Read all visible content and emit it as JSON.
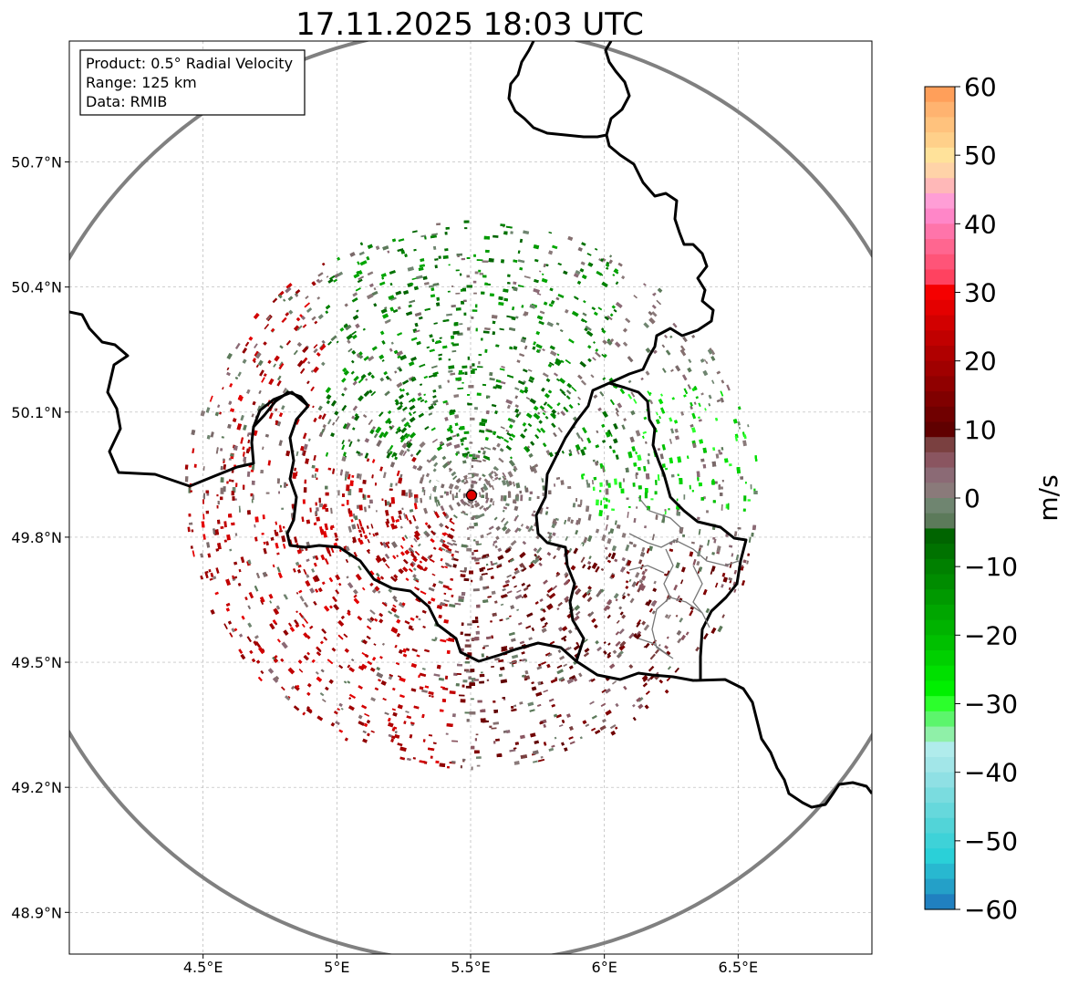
{
  "title": "17.11.2025 18:03 UTC",
  "info_box": {
    "line1": "Product: 0.5° Radial Velocity",
    "line2": "Range: 125 km",
    "line3": "Data: RMIB"
  },
  "x_ticks": [
    "4.5°E",
    "5°E",
    "5.5°E",
    "6°E",
    "6.5°E"
  ],
  "y_ticks": [
    "50.7°N",
    "50.4°N",
    "50.1°N",
    "49.8°N",
    "49.5°N",
    "49.2°N",
    "48.9°N"
  ],
  "colorbar": {
    "label": "m/s",
    "ticks": [
      "60",
      "50",
      "40",
      "30",
      "20",
      "10",
      "0",
      "−10",
      "−20",
      "−30",
      "−40",
      "−50",
      "−60"
    ],
    "colors": [
      "#ff9f5a",
      "#ffb370",
      "#ffc27d",
      "#ffd08a",
      "#ffe29a",
      "#ffd3a8",
      "#ffb8b8",
      "#ff9ed6",
      "#ff86c8",
      "#ff74aa",
      "#ff6690",
      "#ff5478",
      "#ff4260",
      "#f50000",
      "#e40000",
      "#d20000",
      "#c10000",
      "#b00000",
      "#a00000",
      "#900000",
      "#800000",
      "#700000",
      "#600000",
      "#7a4040",
      "#8a5560",
      "#8b6a75",
      "#8a7a7a",
      "#6f8570",
      "#5c7a5a",
      "#006400",
      "#007200",
      "#008000",
      "#008c00",
      "#009900",
      "#00a600",
      "#00b300",
      "#00c000",
      "#00d000",
      "#00e000",
      "#00f000",
      "#2cff2c",
      "#5cf56c",
      "#8ff0a8",
      "#b0ecec",
      "#a2e6e8",
      "#8fe0e4",
      "#7adcdf",
      "#66d8dc",
      "#52d4d8",
      "#3ed2d8",
      "#2ad0d8",
      "#28b8d0",
      "#24a0c8",
      "#2080c0"
    ],
    "vmin": -60,
    "vmax": 60
  },
  "radar_site": {
    "lon": 5.5,
    "lat": 49.91
  },
  "map_extent": {
    "lon_min": 4.0,
    "lon_max": 7.0,
    "lat_min": 48.8,
    "lat_max": 50.99
  }
}
